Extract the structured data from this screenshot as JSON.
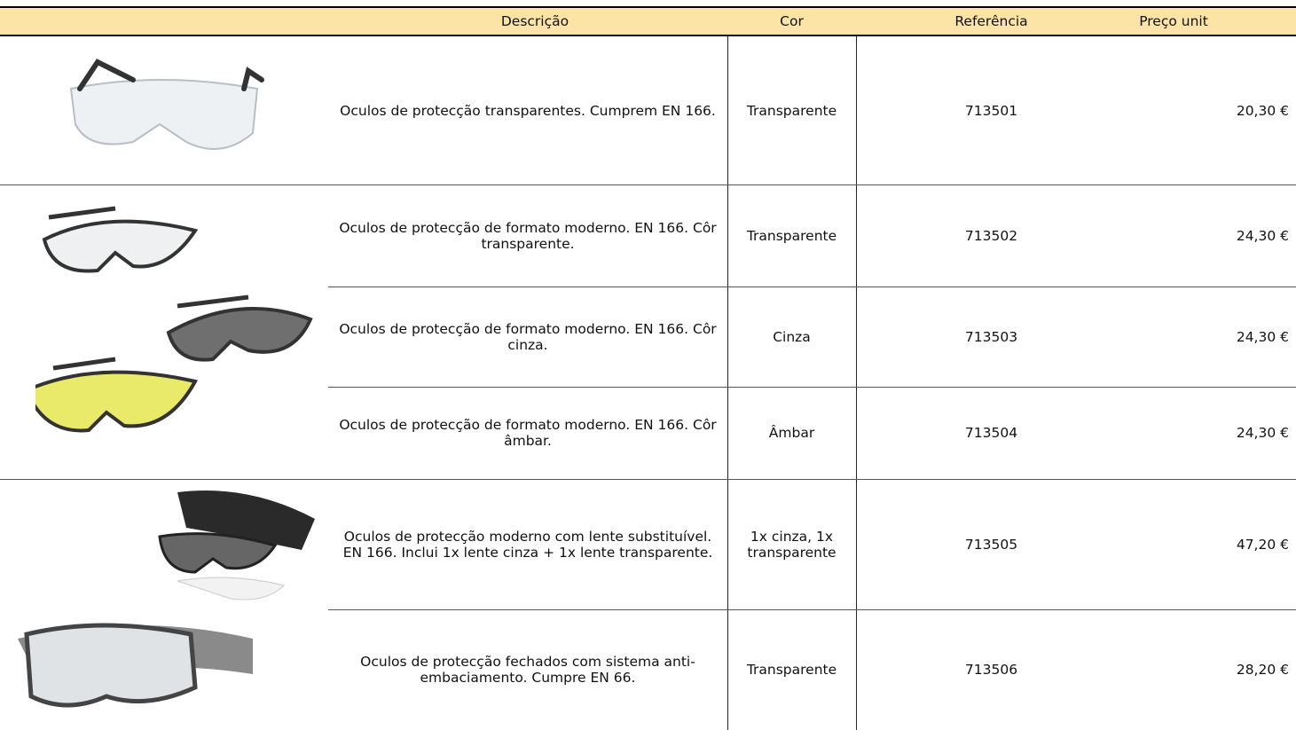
{
  "table": {
    "header": [
      "Descrição",
      "Cor",
      "Referência",
      "Preço unit"
    ],
    "rows": [
      [
        "Oculos de protecção transparentes. Cumprem EN 166.",
        "Transparente",
        "713501",
        "20,30 €"
      ],
      [
        "Oculos de protecção de formato moderno. EN 166. Côr transparente.",
        "Transparente",
        "713502",
        "24,30 €"
      ],
      [
        "Oculos de protecção de formato moderno. EN 166. Côr cinza.",
        "Cinza",
        "713503",
        "24,30 €"
      ],
      [
        "Oculos de protecção de formato moderno. EN 166. Côr âmbar.",
        "Âmbar",
        "713504",
        "24,30 €"
      ],
      [
        "Oculos de protecção moderno com lente substituível. EN 166. Inclui 1x lente cinza + 1x lente transparente.",
        "1x cinza, 1x transparente",
        "713505",
        "47,20 €"
      ],
      [
        "Oculos de protecção fechados com sistema anti-embaciamento. Cumpre EN 66.",
        "Transparente",
        "713506",
        "28,20 €"
      ]
    ]
  }
}
